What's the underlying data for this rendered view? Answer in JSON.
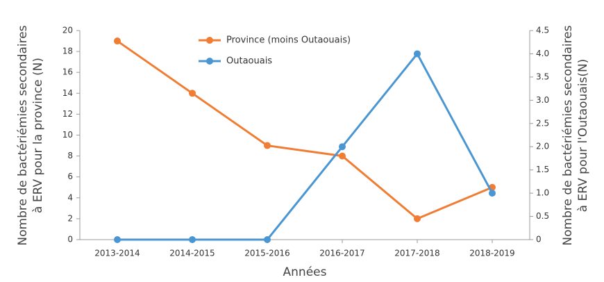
{
  "chart_data": {
    "type": "line",
    "xlabel": "Années",
    "ylabel": [
      "Nombre de bactériémies secondaires",
      "à ERV pour la province (N)"
    ],
    "y2label": [
      "Nombre de bactériémies secondaires",
      "à ERV pour l'Outaouais(N)"
    ],
    "categories": [
      "2013-2014",
      "2014-2015",
      "2015-2016",
      "2016-2017",
      "2017-2018",
      "2018-2019"
    ],
    "series": [
      {
        "name": "Province (moins Outaouais)",
        "color": "#ef7d33",
        "values": [
          19,
          14,
          9,
          8,
          2,
          5
        ]
      },
      {
        "name": "Outaouais",
        "color": "#4a96d2",
        "axis": "y2",
        "values": [
          0,
          0,
          0,
          2,
          4,
          1
        ]
      }
    ],
    "ylim": [
      0,
      20
    ],
    "yticks": [
      0,
      2,
      4,
      6,
      8,
      10,
      12,
      14,
      16,
      18,
      20
    ],
    "y2lim": [
      0,
      4.5
    ],
    "y2ticks": [
      0,
      0.5,
      {
        "value": 1,
        "label": "1.0"
      },
      1.5,
      {
        "value": 2,
        "label": "2.0"
      },
      2.5,
      {
        "value": 3,
        "label": "3.0"
      },
      3.5,
      {
        "value": 4,
        "label": "4.0"
      },
      4.5
    ],
    "legend": "top",
    "grid": false
  }
}
